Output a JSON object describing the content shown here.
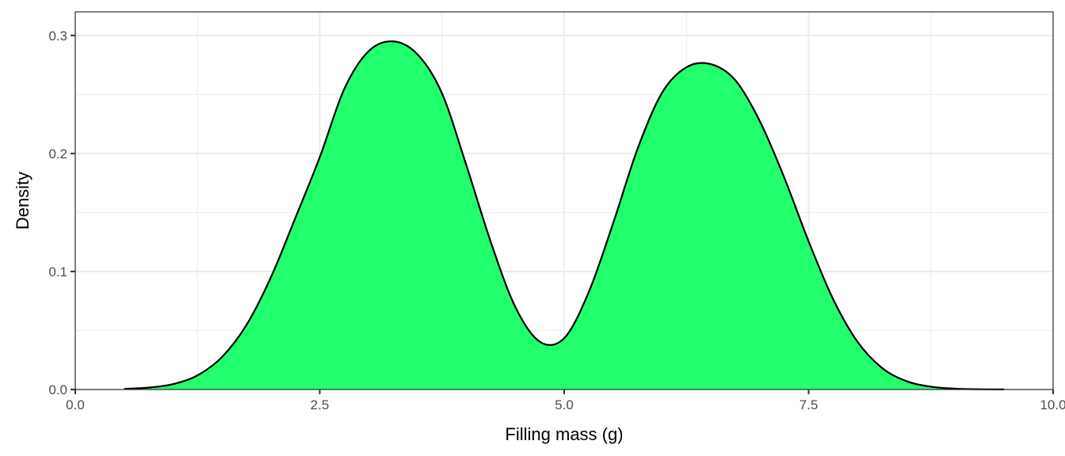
{
  "chart_data": {
    "type": "area",
    "title": "",
    "xlabel": "Filling mass (g)",
    "ylabel": "Density",
    "xlim": [
      0,
      10
    ],
    "ylim": [
      0,
      0.32
    ],
    "x_ticks": [
      0,
      2.5,
      5,
      7.5,
      10
    ],
    "x_tick_labels": [
      "0.0",
      "2.5",
      "5.0",
      "7.5",
      "10.0"
    ],
    "y_ticks": [
      0,
      0.1,
      0.2,
      0.3
    ],
    "y_tick_labels": [
      "0.0",
      "0.1",
      "0.2",
      "0.3"
    ],
    "grid": true,
    "legend": "none",
    "fill_color": "#22FF6E",
    "line_color": "#000000",
    "x": [
      0.5,
      0.75,
      1.0,
      1.25,
      1.5,
      1.75,
      2.0,
      2.25,
      2.5,
      2.75,
      3.0,
      3.25,
      3.5,
      3.75,
      4.0,
      4.25,
      4.5,
      4.75,
      5.0,
      5.25,
      5.5,
      5.75,
      6.0,
      6.25,
      6.5,
      6.75,
      7.0,
      7.25,
      7.5,
      7.75,
      8.0,
      8.25,
      8.5,
      8.75,
      9.0,
      9.25,
      9.5
    ],
    "y": [
      0.0005,
      0.0016,
      0.0046,
      0.012,
      0.0275,
      0.0546,
      0.095,
      0.1453,
      0.1968,
      0.2545,
      0.2867,
      0.295,
      0.284,
      0.251,
      0.1899,
      0.1248,
      0.07,
      0.0405,
      0.0435,
      0.0823,
      0.1408,
      0.2039,
      0.2514,
      0.2731,
      0.2757,
      0.2621,
      0.2275,
      0.1797,
      0.1255,
      0.0766,
      0.0404,
      0.0183,
      0.0071,
      0.0024,
      0.0007,
      0.0002,
      0.0001
    ]
  }
}
